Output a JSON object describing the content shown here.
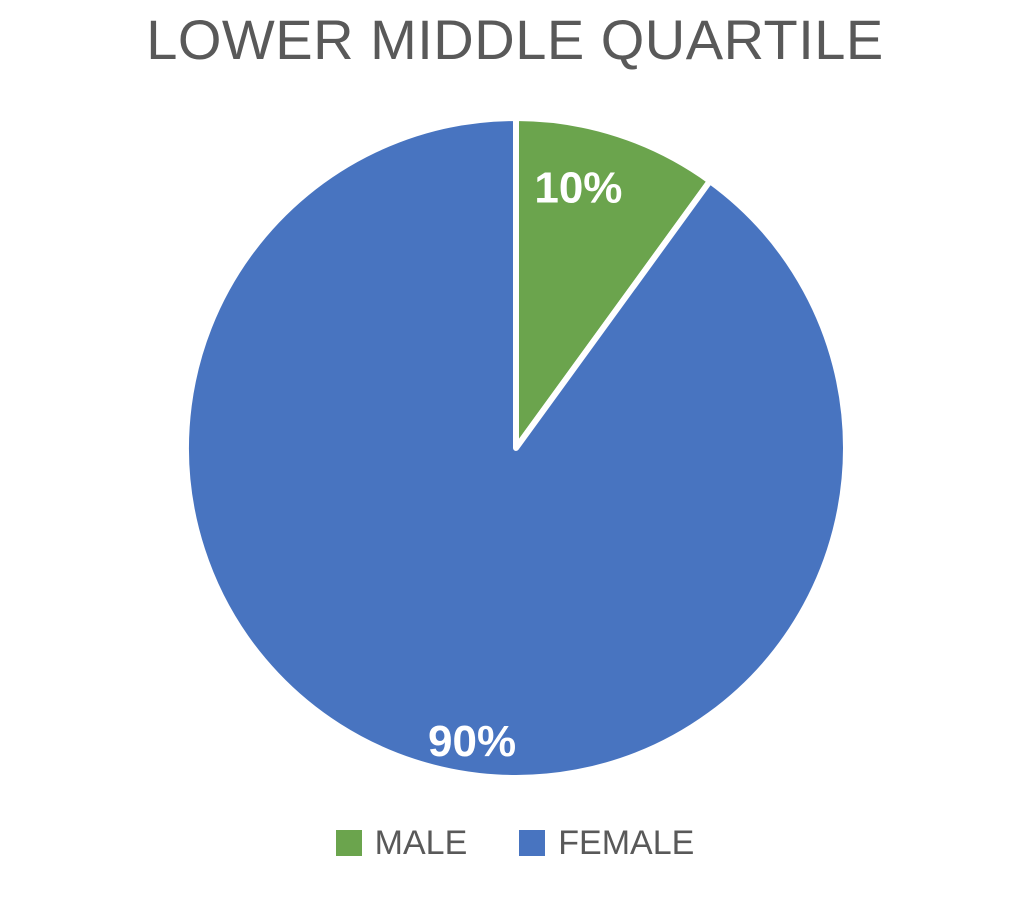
{
  "page": {
    "background": "#ffffff"
  },
  "chart_data": {
    "type": "pie",
    "title": "LOWER MIDDLE QUARTILE",
    "categories": [
      "MALE",
      "FEMALE"
    ],
    "values": [
      10,
      90
    ],
    "slices": [
      {
        "name": "MALE",
        "value": 10,
        "percent_label": "10%",
        "color": "#6BA44D",
        "label_pos": {
          "angle_deg": 13.5,
          "radius_frac": 0.81
        }
      },
      {
        "name": "FEMALE",
        "value": 90,
        "percent_label": "90%",
        "color": "#4874C0",
        "label_pos": {
          "angle_deg": 188.5,
          "radius_frac": 0.9
        }
      }
    ],
    "start_angle_deg": 0,
    "direction": "clockwise",
    "legend_position": "bottom",
    "legend": [
      {
        "label": "MALE",
        "color": "#6BA44D"
      },
      {
        "label": "FEMALE",
        "color": "#4874C0"
      }
    ],
    "separator_color": "#ffffff",
    "label_color": "#ffffff",
    "title_color": "#595959",
    "legend_text_color": "#595959"
  }
}
